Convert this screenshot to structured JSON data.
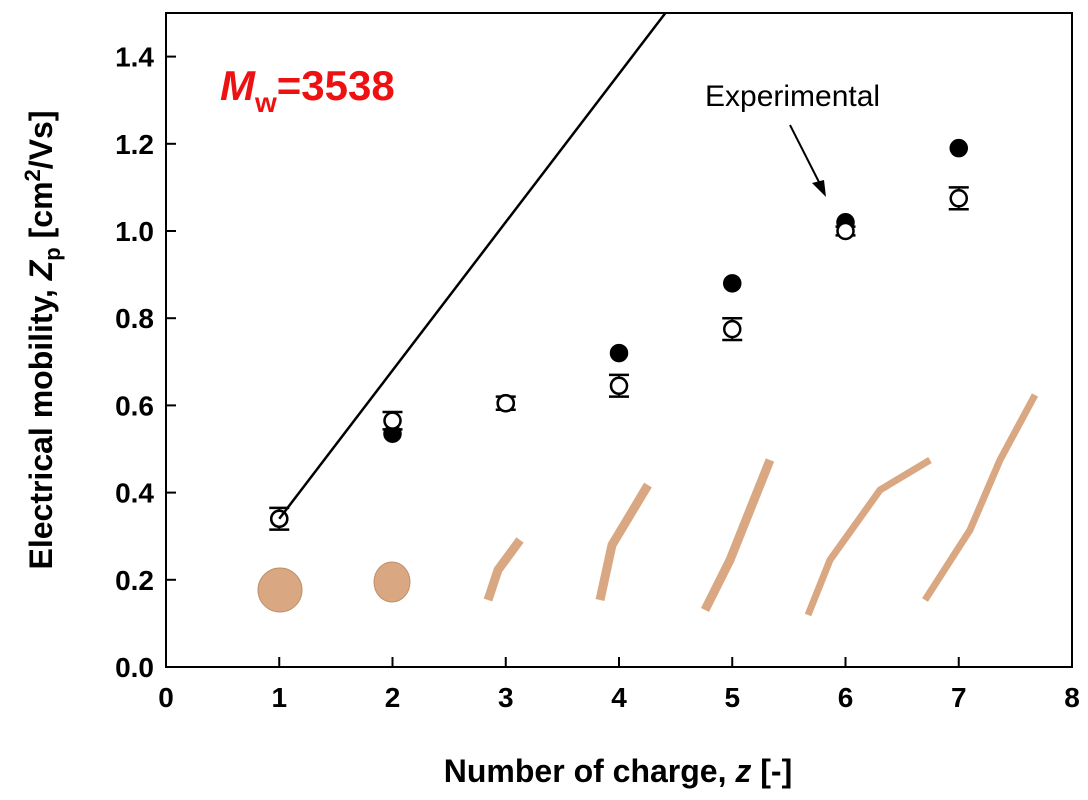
{
  "chart_data": {
    "type": "scatter",
    "annotation": {
      "symbol": "M",
      "subscript": "w",
      "text": "=3538",
      "color": "#ee1111"
    },
    "arrow_label": "Experimental",
    "x_label": {
      "text": "Number of charge, ",
      "italic": "z",
      "after": " [-]"
    },
    "y_label": {
      "text": "Electrical mobility, ",
      "italic": "Z",
      "subscript": "p",
      "after": " [cm",
      "superscript": "2",
      "end": "/Vs]"
    },
    "xlim": [
      0,
      8
    ],
    "ylim": [
      0,
      1.5
    ],
    "xticks": [
      0,
      1,
      2,
      3,
      4,
      5,
      6,
      7,
      8
    ],
    "yticks": [
      {
        "value": 0,
        "label": "0.0"
      },
      0.2,
      0.4,
      0.6,
      0.8,
      {
        "value": 1,
        "label": "1.0"
      },
      1.2,
      1.4
    ],
    "series": [
      {
        "marker": "filled",
        "color": "#000000",
        "x": [
          1,
          2,
          3,
          4,
          5,
          6,
          7
        ],
        "values": [
          0.34,
          0.535,
          0.605,
          0.72,
          0.88,
          1.02,
          1.19
        ]
      },
      {
        "marker": "open",
        "color": "#000000",
        "x": [
          1,
          2,
          3,
          4,
          5,
          6,
          7
        ],
        "values": [
          0.34,
          0.565,
          0.605,
          0.645,
          0.775,
          1.0,
          1.075
        ],
        "errors": [
          0.025,
          0.02,
          0.015,
          0.025,
          0.025,
          0.01,
          0.025
        ]
      },
      {
        "marker": "line",
        "color": "#000000",
        "x": [
          1,
          4.41
        ],
        "values": [
          0.34,
          1.5
        ]
      }
    ]
  }
}
